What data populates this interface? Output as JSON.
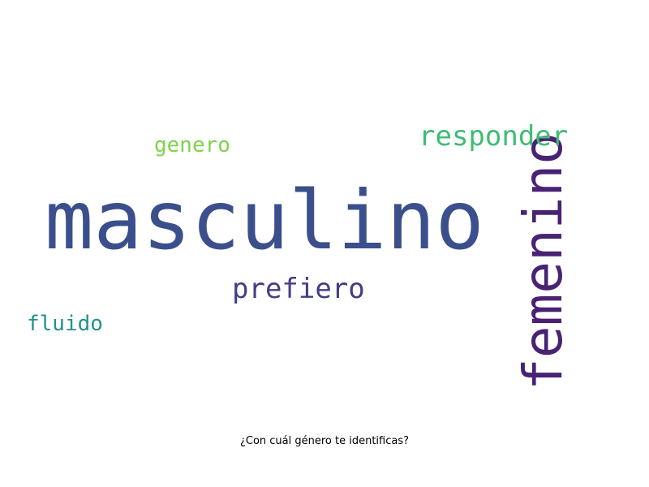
{
  "words": {
    "masculino": {
      "text": "masculino",
      "color": "#3b4f8c"
    },
    "femenino": {
      "text": "femenino",
      "color": "#482374"
    },
    "responder": {
      "text": "responder",
      "color": "#3fbc74"
    },
    "genero": {
      "text": "genero",
      "color": "#7fd24e"
    },
    "prefiero": {
      "text": "prefiero",
      "color": "#433e85"
    },
    "fluido": {
      "text": "fluido",
      "color": "#23918c"
    }
  },
  "caption": "¿Con cuál género te identificas?"
}
